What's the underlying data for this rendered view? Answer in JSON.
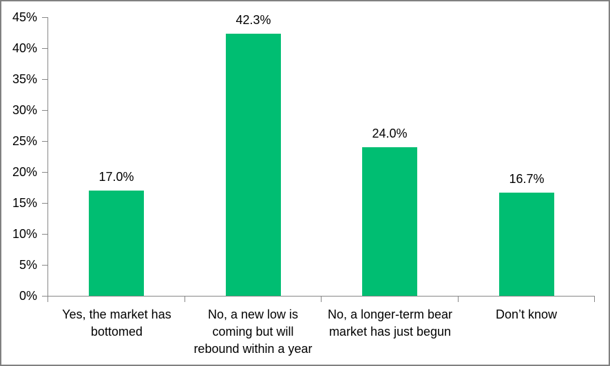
{
  "chart_data": {
    "type": "bar",
    "categories": [
      "Yes, the market has bottomed",
      "No, a new low is coming but will rebound within a year",
      "No, a longer-term bear market has just begun",
      "Don’t know"
    ],
    "values": [
      17.0,
      42.3,
      24.0,
      16.7
    ],
    "data_labels": [
      "17.0%",
      "42.3%",
      "24.0%",
      "16.7%"
    ],
    "yticks": [
      "0%",
      "5%",
      "10%",
      "15%",
      "20%",
      "25%",
      "30%",
      "35%",
      "40%",
      "45%"
    ],
    "ylim": [
      0,
      45
    ],
    "grid": false,
    "legend": "none",
    "colors": {
      "bar": "#00BE72",
      "axis": "#868686",
      "text": "#000000",
      "frame_border": "#808080",
      "background": "#FFFFFF"
    }
  }
}
